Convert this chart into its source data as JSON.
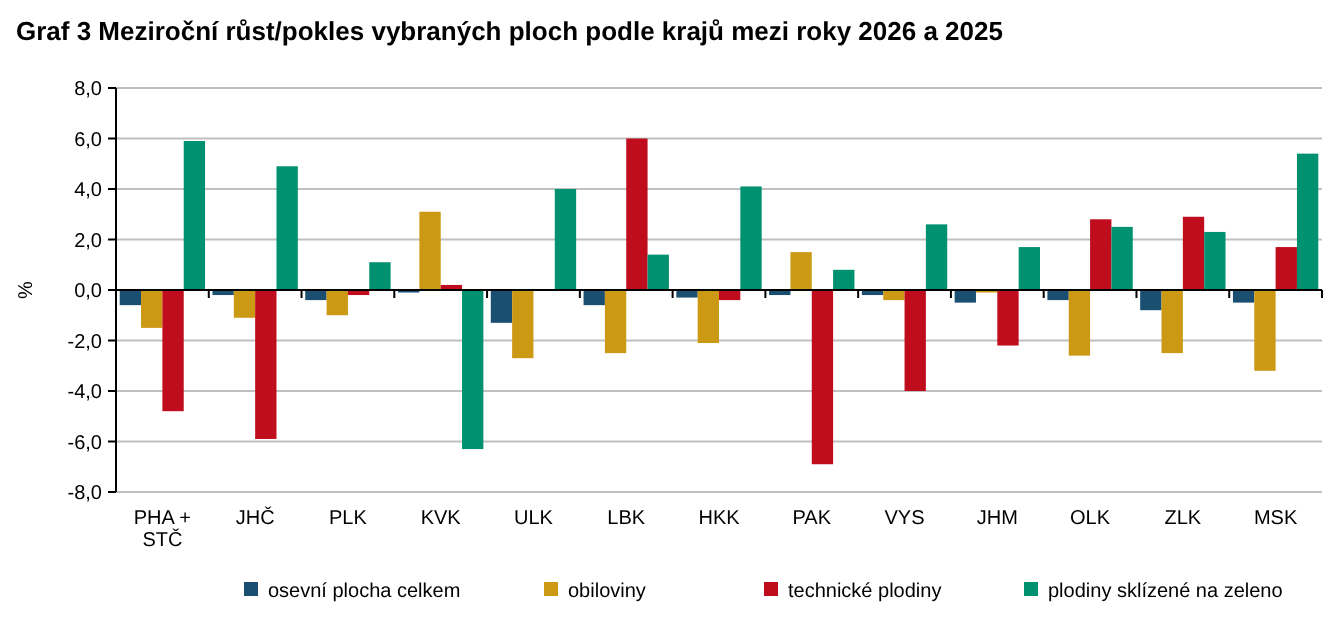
{
  "chart_data": {
    "type": "bar",
    "title": "Graf 3 Meziroční růst/pokles  vybraných  ploch podle krajů mezi roky 2026 a 2025",
    "ylabel": "%",
    "categories": [
      "PHA + STČ",
      "JHČ",
      "PLK",
      "KVK",
      "ULK",
      "LBK",
      "HKK",
      "PAK",
      "VYS",
      "JHM",
      "OLK",
      "ZLK",
      "MSK"
    ],
    "series": [
      {
        "name": "osevní plocha celkem",
        "color": "#1b4f72",
        "values": [
          -0.6,
          -0.2,
          -0.4,
          -0.1,
          -1.3,
          -0.6,
          -0.3,
          -0.2,
          -0.2,
          -0.5,
          -0.4,
          -0.8,
          -0.5
        ]
      },
      {
        "name": "obiloviny",
        "color": "#cc9914",
        "values": [
          -1.5,
          -1.1,
          -1.0,
          3.1,
          -2.7,
          -2.5,
          -2.1,
          1.5,
          -0.4,
          -0.1,
          -2.6,
          -2.5,
          -3.2
        ]
      },
      {
        "name": "technické plodiny",
        "color": "#c00d1e",
        "values": [
          -4.8,
          -5.9,
          -0.2,
          0.2,
          0,
          6.0,
          -0.4,
          -6.9,
          -4.0,
          -2.2,
          2.8,
          2.9,
          1.7
        ]
      },
      {
        "name": "plodiny sklízené na zeleno",
        "color": "#009170",
        "values": [
          5.9,
          4.9,
          1.1,
          -6.3,
          4.0,
          1.4,
          4.1,
          0.8,
          2.6,
          1.7,
          2.5,
          2.3,
          5.4
        ]
      }
    ],
    "ylim": [
      -8,
      8
    ],
    "yticks": [
      {
        "value": -8,
        "label": "-8,0"
      },
      {
        "value": -6,
        "label": "-6,0"
      },
      {
        "value": -4,
        "label": "-4,0"
      },
      {
        "value": -2,
        "label": "-2,0"
      },
      {
        "value": 0,
        "label": "0,0"
      },
      {
        "value": 2,
        "label": "2,0"
      },
      {
        "value": 4,
        "label": "4,0"
      },
      {
        "value": 6,
        "label": "6,0"
      },
      {
        "value": 8,
        "label": "8,0"
      }
    ],
    "grid": "y",
    "legend": "bottom"
  }
}
